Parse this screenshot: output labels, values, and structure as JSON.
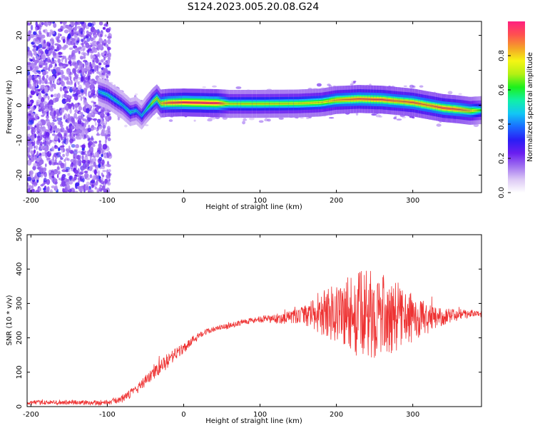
{
  "title": "S124.2023.005.20.08.G24",
  "colors": {
    "snr_line": "#ee3333",
    "colormap": [
      "#ffffff",
      "#dcc8f5",
      "#a070f0",
      "#6a1ef0",
      "#2a1ef5",
      "#1a6cff",
      "#12c6f5",
      "#10f0a8",
      "#1cf01c",
      "#b4f014",
      "#f5f514",
      "#f5a028",
      "#ff5050",
      "#ff2080"
    ]
  },
  "chart_data": [
    {
      "type": "heatmap",
      "name": "spectrogram",
      "xlabel": "Height of straight line (km)",
      "ylabel": "Frequency (Hz)",
      "xlim": [
        -205,
        390
      ],
      "ylim": [
        -25,
        24
      ],
      "xticks": [
        -200,
        -100,
        0,
        100,
        200,
        300
      ],
      "xticklabels": [
        "-200",
        "-100",
        "0",
        "100",
        "200",
        "300"
      ],
      "yticks": [
        -20,
        -10,
        0,
        10,
        20
      ],
      "yticklabels": [
        "-20",
        "-10",
        "0",
        "10",
        "20"
      ],
      "noise_region_x": [
        -205,
        -100
      ],
      "ridge": {
        "x": [
          -112,
          -100,
          -90,
          -80,
          -70,
          -62,
          -55,
          -48,
          -40,
          -35,
          -30,
          -20,
          0,
          45,
          60,
          100,
          150,
          180,
          200,
          230,
          260,
          280,
          300,
          320,
          340,
          360,
          375,
          390
        ],
        "frequency": [
          4,
          3,
          1.5,
          0,
          -2,
          -1.5,
          -3,
          -1,
          1,
          2,
          0.5,
          0.7,
          0.8,
          0.6,
          0.4,
          0.4,
          0.5,
          0.8,
          1.5,
          1.8,
          1.6,
          1.2,
          0.8,
          0,
          -0.8,
          -1.2,
          -1.6,
          -1.4
        ],
        "amplitude": [
          0.45,
          0.5,
          0.5,
          0.45,
          0.5,
          0.45,
          0.45,
          0.55,
          0.7,
          0.75,
          0.8,
          0.9,
          0.95,
          0.95,
          0.7,
          0.7,
          0.72,
          0.75,
          0.82,
          0.88,
          0.9,
          0.85,
          0.88,
          0.85,
          0.9,
          0.88,
          0.8,
          0.6
        ]
      },
      "colorbar": {
        "label": "Normalized spectral amplitude",
        "range": [
          0,
          1
        ],
        "ticks": [
          0.0,
          0.2,
          0.4,
          0.6,
          0.8
        ],
        "ticklabels": [
          "0.0",
          "0.2",
          "0.4",
          "0.6",
          "0.8"
        ]
      }
    },
    {
      "type": "line",
      "name": "snr",
      "xlabel": "Height of straight line (km)",
      "ylabel": "SNR (10 * v/v)",
      "xlim": [
        -205,
        390
      ],
      "ylim": [
        0,
        500
      ],
      "xticks": [
        -200,
        -100,
        0,
        100,
        200,
        300
      ],
      "xticklabels": [
        "-200",
        "-100",
        "0",
        "100",
        "200",
        "300"
      ],
      "yticks": [
        0,
        100,
        200,
        300,
        400,
        500
      ],
      "yticklabels": [
        "0",
        "100",
        "200",
        "300",
        "400",
        "500"
      ],
      "envelope": {
        "x": [
          -205,
          -100,
          -80,
          -60,
          -40,
          -20,
          0,
          20,
          40,
          60,
          80,
          100,
          120,
          140,
          160,
          180,
          200,
          220,
          240,
          260,
          280,
          300,
          320,
          340,
          360,
          380,
          390
        ],
        "mean": [
          12,
          12,
          22,
          55,
          95,
          135,
          170,
          210,
          225,
          235,
          248,
          253,
          255,
          260,
          265,
          270,
          275,
          270,
          268,
          265,
          262,
          258,
          255,
          262,
          268,
          272,
          270
        ],
        "spread": [
          6,
          8,
          10,
          14,
          18,
          22,
          16,
          10,
          8,
          8,
          8,
          10,
          14,
          20,
          30,
          60,
          95,
          120,
          130,
          120,
          100,
          70,
          45,
          25,
          14,
          10,
          10
        ]
      }
    }
  ]
}
